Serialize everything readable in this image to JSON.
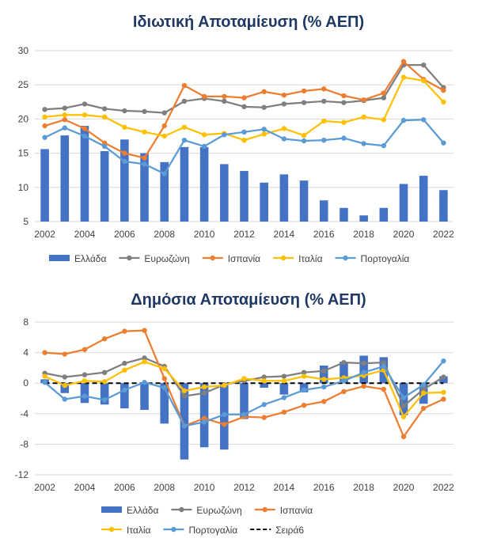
{
  "colors": {
    "title": "#1f3864",
    "greece": "#4472c4",
    "eurozone": "#7f7f7f",
    "spain": "#ed7d31",
    "italy": "#ffc000",
    "portugal": "#5b9bd5",
    "series6": "#000000",
    "grid": "#d9d9d9"
  },
  "chart_data": [
    {
      "type": "bar+line",
      "title": "Ιδιωτική Αποταμίευση (% ΑΕΠ)",
      "xlabel": "",
      "ylabel": "",
      "x": [
        2002,
        2003,
        2004,
        2005,
        2006,
        2007,
        2008,
        2009,
        2010,
        2011,
        2012,
        2013,
        2014,
        2015,
        2016,
        2017,
        2018,
        2019,
        2020,
        2021,
        2022
      ],
      "x_tick_labels": [
        "2002",
        "2004",
        "2006",
        "2008",
        "2010",
        "2012",
        "2014",
        "2016",
        "2018",
        "2020",
        "2022"
      ],
      "ylim": [
        5,
        30
      ],
      "y_ticks": [
        5,
        10,
        15,
        20,
        25,
        30
      ],
      "grid": true,
      "legend_position": "bottom",
      "series": [
        {
          "name": "Ελλάδα",
          "kind": "bar",
          "color_key": "greece",
          "values": [
            15.6,
            17.6,
            19.0,
            15.3,
            17.0,
            15.0,
            13.7,
            15.9,
            15.9,
            13.4,
            12.4,
            10.7,
            11.9,
            11.0,
            8.1,
            7.0,
            5.9,
            7.0,
            10.5,
            11.7,
            9.6
          ]
        },
        {
          "name": "Ευρωζώνη",
          "kind": "line",
          "color_key": "eurozone",
          "values": [
            21.4,
            21.6,
            22.2,
            21.5,
            21.2,
            21.1,
            20.9,
            22.6,
            23.0,
            22.6,
            21.8,
            21.7,
            22.2,
            22.4,
            22.6,
            22.4,
            22.7,
            23.1,
            27.9,
            27.9,
            24.6
          ]
        },
        {
          "name": "Ισπανία",
          "kind": "line",
          "color_key": "spain",
          "values": [
            19.0,
            19.9,
            18.6,
            16.5,
            15.0,
            14.3,
            19.0,
            24.9,
            23.3,
            23.3,
            23.1,
            24.0,
            23.5,
            24.1,
            24.4,
            23.4,
            22.8,
            23.8,
            28.4,
            25.8,
            24.2
          ]
        },
        {
          "name": "Ιταλία",
          "kind": "line",
          "color_key": "italy",
          "values": [
            20.3,
            20.6,
            20.6,
            20.3,
            18.8,
            18.1,
            17.5,
            18.8,
            17.7,
            17.9,
            16.9,
            17.8,
            18.6,
            17.6,
            19.7,
            19.5,
            20.3,
            19.9,
            26.1,
            25.6,
            22.5
          ]
        },
        {
          "name": "Πορτογαλία",
          "kind": "line",
          "color_key": "portugal",
          "values": [
            17.3,
            18.7,
            17.5,
            16.0,
            13.8,
            13.4,
            12.0,
            16.9,
            16.0,
            17.7,
            18.1,
            18.5,
            17.1,
            16.8,
            16.9,
            17.2,
            16.4,
            16.1,
            19.8,
            19.9,
            16.5
          ]
        }
      ]
    },
    {
      "type": "bar+line",
      "title": "Δημόσια Αποταμίευση (% ΑΕΠ)",
      "xlabel": "",
      "ylabel": "",
      "x": [
        2002,
        2003,
        2004,
        2005,
        2006,
        2007,
        2008,
        2009,
        2010,
        2011,
        2012,
        2013,
        2014,
        2015,
        2016,
        2017,
        2018,
        2019,
        2020,
        2021,
        2022
      ],
      "x_tick_labels": [
        "2002",
        "2004",
        "2006",
        "2008",
        "2010",
        "2012",
        "2014",
        "2016",
        "2018",
        "2020",
        "2022"
      ],
      "ylim": [
        -12,
        8
      ],
      "y_ticks": [
        -12,
        -8,
        -4,
        0,
        4,
        8
      ],
      "grid": true,
      "legend_position": "bottom",
      "series": [
        {
          "name": "Ελλάδα",
          "kind": "bar",
          "color_key": "greece",
          "values": [
            0.5,
            -1.3,
            -2.6,
            -2.8,
            -3.3,
            -3.5,
            -5.3,
            -10.0,
            -8.4,
            -8.7,
            -4.7,
            -0.6,
            -1.5,
            -1.2,
            2.3,
            2.8,
            3.6,
            3.4,
            -4.2,
            -2.7,
            0.9
          ]
        },
        {
          "name": "Ευρωζώνη",
          "kind": "line",
          "color_key": "eurozone",
          "values": [
            1.3,
            0.8,
            1.1,
            1.4,
            2.6,
            3.3,
            2.2,
            -1.7,
            -1.3,
            -0.2,
            0.3,
            0.8,
            0.9,
            1.4,
            1.6,
            2.7,
            2.6,
            2.7,
            -3.0,
            -0.8,
            0.8
          ]
        },
        {
          "name": "Ισπανία",
          "kind": "line",
          "color_key": "spain",
          "values": [
            4.0,
            3.8,
            4.4,
            5.8,
            6.8,
            6.9,
            0.6,
            -5.6,
            -4.6,
            -5.4,
            -4.4,
            -4.5,
            -3.8,
            -2.9,
            -2.4,
            -1.1,
            -0.4,
            -0.8,
            -7.0,
            -3.3,
            -2.1
          ]
        },
        {
          "name": "Ιταλία",
          "kind": "line",
          "color_key": "italy",
          "values": [
            0.9,
            -0.3,
            0.3,
            0.2,
            1.7,
            2.8,
            1.9,
            -1.0,
            -0.5,
            -0.3,
            0.6,
            0.3,
            0.3,
            0.9,
            0.5,
            0.7,
            1.0,
            1.7,
            -4.4,
            -1.3,
            -1.2
          ]
        },
        {
          "name": "Πορτογαλία",
          "kind": "line",
          "color_key": "portugal",
          "values": [
            0.1,
            -2.1,
            -1.7,
            -2.2,
            -0.9,
            0.1,
            -0.6,
            -5.6,
            -5.1,
            -4.1,
            -4.1,
            -2.8,
            -1.9,
            -0.9,
            -0.5,
            0.3,
            1.4,
            2.2,
            -1.9,
            -0.2,
            2.9
          ]
        },
        {
          "name": "Σειρά6",
          "kind": "dashed",
          "color_key": "series6",
          "values": [
            0,
            0,
            0,
            0,
            0,
            0,
            0,
            0,
            0,
            0,
            0,
            0,
            0,
            0,
            0,
            0,
            0,
            0,
            0,
            0,
            0
          ]
        }
      ]
    }
  ]
}
